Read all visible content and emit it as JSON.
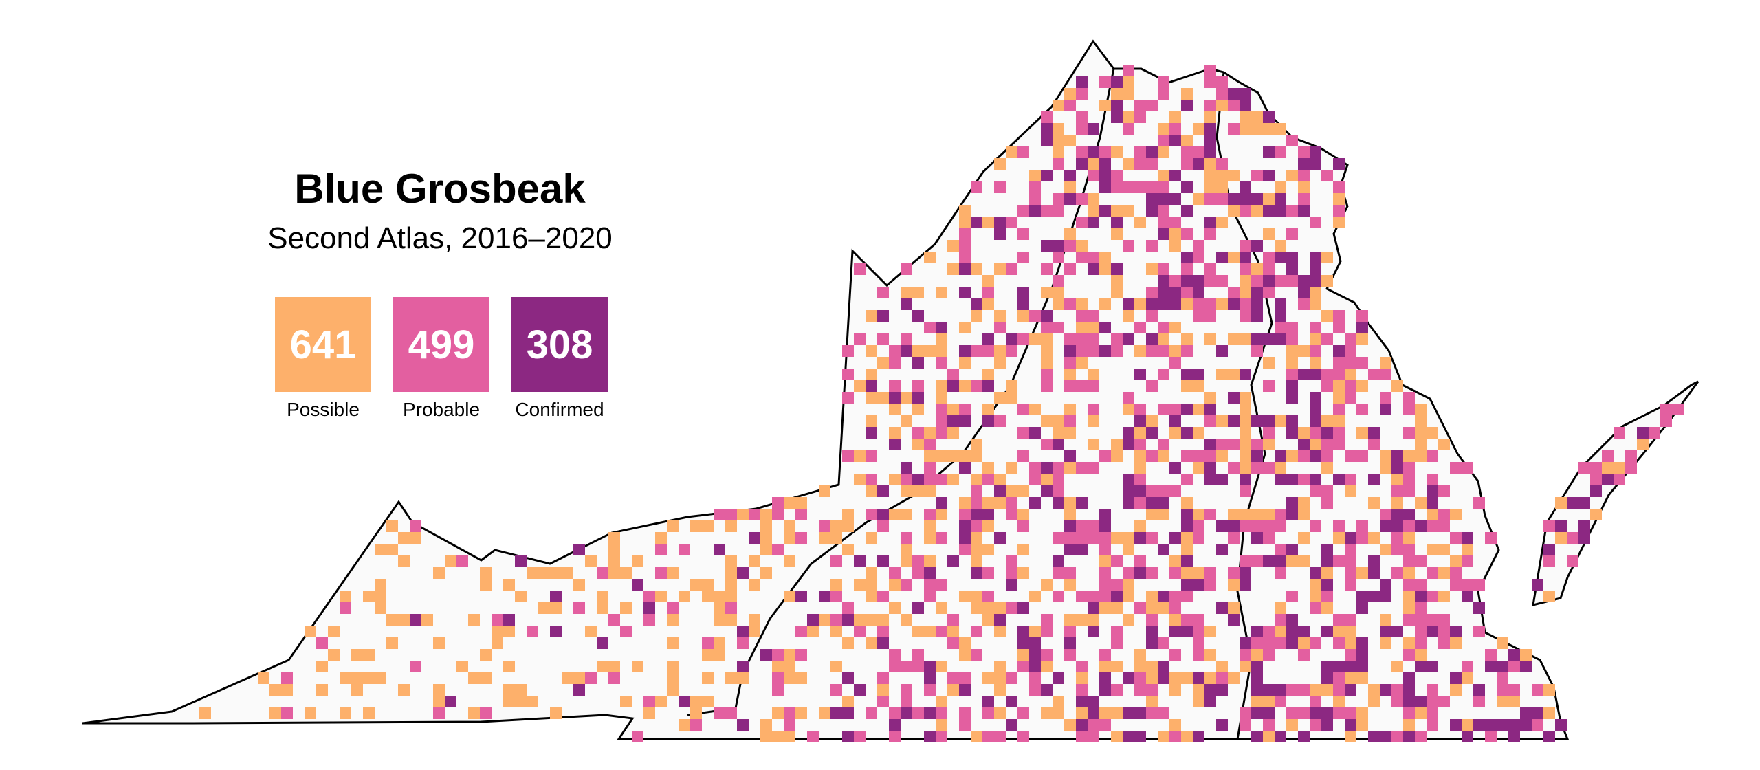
{
  "title": "Blue Grosbeak",
  "subtitle": "Second Atlas, 2016–2020",
  "legend": [
    {
      "count": "641",
      "label": "Possible",
      "color": "#fdb06b"
    },
    {
      "count": "499",
      "label": "Probable",
      "color": "#e35fa0"
    },
    {
      "count": "308",
      "label": "Confirmed",
      "color": "#8c2882"
    }
  ]
}
